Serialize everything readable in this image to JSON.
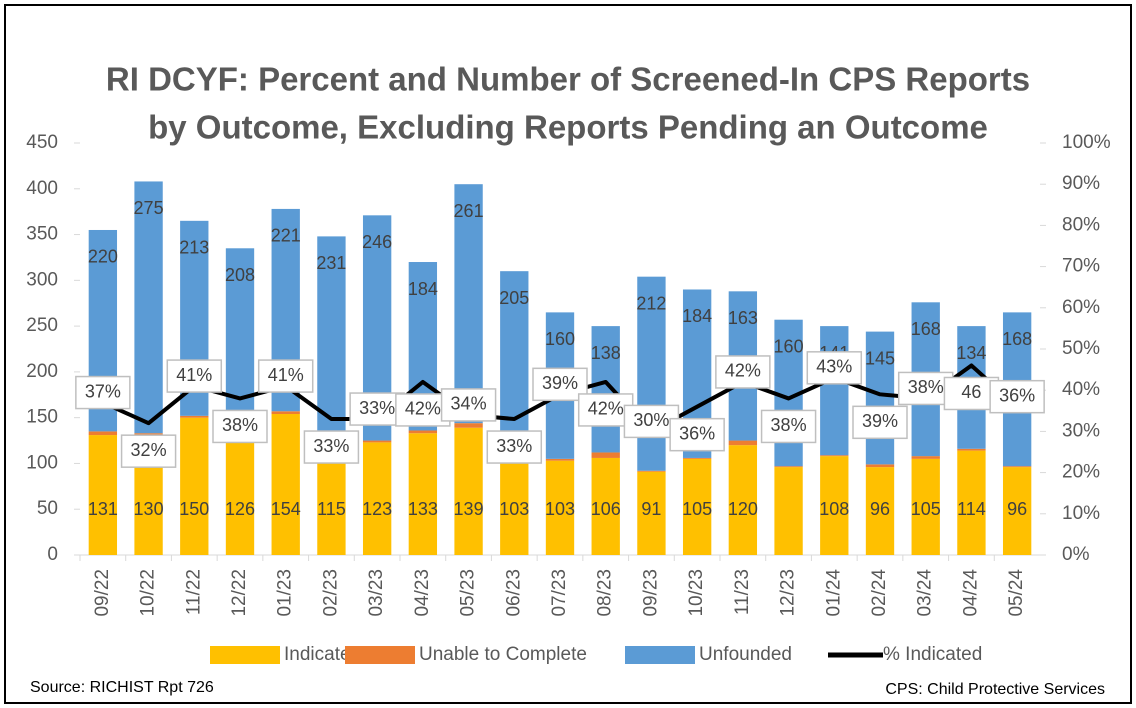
{
  "chart_data": {
    "type": "bar",
    "title": [
      "RI DCYF: Percent and Number of Screened-In CPS Reports",
      "by Outcome, Excluding Reports Pending an Outcome"
    ],
    "categories": [
      "09/22",
      "10/22",
      "11/22",
      "12/22",
      "01/23",
      "02/23",
      "03/23",
      "04/23",
      "05/23",
      "06/23",
      "07/23",
      "08/23",
      "09/23",
      "10/23",
      "11/23",
      "12/23",
      "01/24",
      "02/24",
      "03/24",
      "04/24",
      "05/24"
    ],
    "stacked": true,
    "series": [
      {
        "name": "Indicated",
        "color": "#FFC000",
        "values": [
          131,
          130,
          150,
          126,
          154,
          115,
          123,
          133,
          139,
          103,
          103,
          106,
          91,
          105,
          120,
          96,
          108,
          96,
          105,
          114,
          96
        ],
        "value_labels": [
          "131",
          "130",
          "150",
          "126",
          "154",
          "115",
          "123",
          "133",
          "139",
          "103",
          "103",
          "106",
          "91",
          "105",
          "120",
          null,
          "108",
          "96",
          "105",
          "114",
          "96"
        ]
      },
      {
        "name": "Unable to Complete",
        "color": "#ED7D31",
        "values": [
          4,
          3,
          2,
          1,
          3,
          2,
          2,
          3,
          5,
          2,
          2,
          6,
          1,
          1,
          5,
          1,
          1,
          3,
          3,
          2,
          1
        ]
      },
      {
        "name": "Unfounded",
        "color": "#5B9BD5",
        "values": [
          220,
          275,
          213,
          208,
          221,
          231,
          246,
          184,
          261,
          205,
          160,
          138,
          212,
          184,
          163,
          160,
          141,
          145,
          168,
          134,
          168
        ],
        "value_labels": [
          "220",
          "275",
          "213",
          "208",
          "221",
          "231",
          "246",
          "184",
          "261",
          "205",
          "160",
          "138",
          "212",
          "184",
          "163",
          "160",
          "141",
          "145",
          "168",
          "134",
          "168"
        ]
      },
      {
        "name": "% Indicated",
        "type": "line",
        "axis": "y2",
        "color": "#000000",
        "values": [
          37,
          32,
          41,
          38,
          41,
          33,
          33,
          42,
          34,
          33,
          39,
          42,
          30,
          36,
          42,
          38,
          43,
          39,
          38,
          46,
          36
        ],
        "value_labels": [
          "37%",
          "32%",
          "41%",
          "38%",
          "41%",
          "33%",
          "33%",
          "42%",
          "34%",
          "33%",
          "39%",
          "42%",
          "30%",
          "36%",
          "42%",
          "38%",
          "43%",
          "39%",
          "38%",
          "46",
          "36%"
        ]
      }
    ],
    "ylim": [
      0,
      450
    ],
    "yticks": [
      0,
      50,
      100,
      150,
      200,
      250,
      300,
      350,
      400,
      450
    ],
    "y2lim": [
      0,
      100
    ],
    "y2ticks": [
      {
        "value": 0,
        "label": "0%"
      },
      {
        "value": 10,
        "label": "10%"
      },
      {
        "value": 20,
        "label": "20%"
      },
      {
        "value": 30,
        "label": "30%"
      },
      {
        "value": 40,
        "label": "40%"
      },
      {
        "value": 50,
        "label": "50%"
      },
      {
        "value": 60,
        "label": "60%"
      },
      {
        "value": 70,
        "label": "70%"
      },
      {
        "value": 80,
        "label": "80%"
      },
      {
        "value": 90,
        "label": "90%"
      },
      {
        "value": 100,
        "label": "100%"
      }
    ],
    "legend": "bottom",
    "source": "Source: RICHIST Rpt 726",
    "note": "CPS: Child Protective Services"
  }
}
